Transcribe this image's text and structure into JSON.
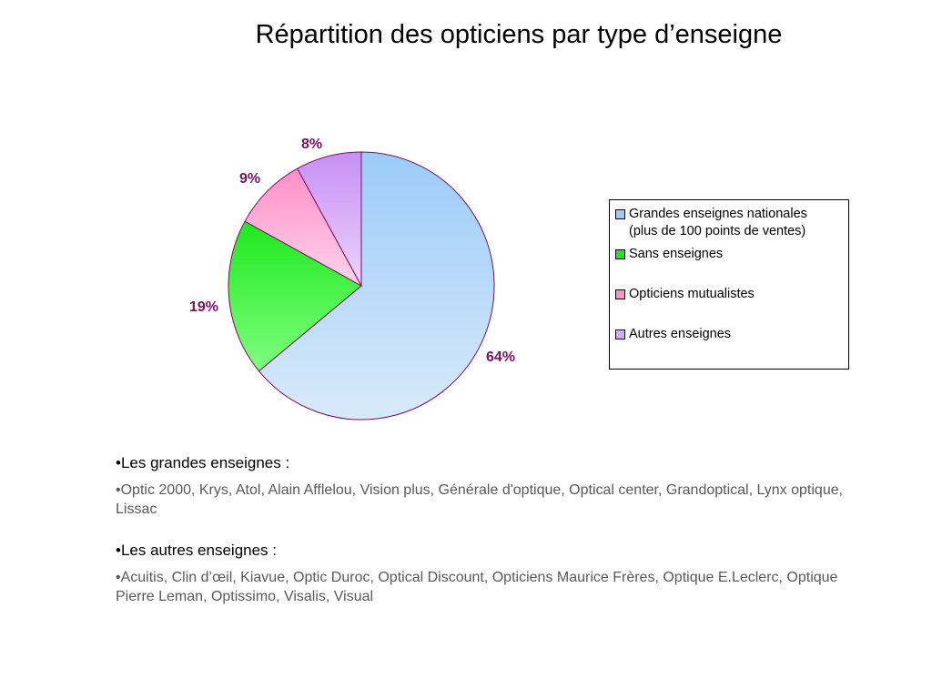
{
  "slide": {
    "title": "Répartition des opticiens par type d’enseigne"
  },
  "chart_data": {
    "type": "pie",
    "title": "",
    "categories": [
      "Grandes enseignes nationales (plus de 100 points de ventes)",
      "Sans enseignes",
      "Opticiens mutualistes",
      "Autres enseignes"
    ],
    "values": [
      64,
      19,
      9,
      8
    ],
    "data_labels": [
      "64%",
      "19%",
      "9%",
      "8%"
    ],
    "legend_placement": "right",
    "colors": {
      "grandes": [
        "#9ccbf9",
        "#d8eaf9"
      ],
      "sans": [
        "#1ee81e",
        "#7fff7f"
      ],
      "mutualistes": [
        "#ff8fc8",
        "#ffd4ea"
      ],
      "autres": [
        "#c78ff5",
        "#ecd4fb"
      ],
      "outline": "#7a0e63",
      "label": "#7a0e63"
    }
  },
  "legend": {
    "items": [
      {
        "line1": "Grandes enseignes nationales",
        "line2": "(plus de 100 points de ventes)",
        "color": "#9ccbf9"
      },
      {
        "line1": "Sans enseignes",
        "line2": "",
        "color": "#1ee81e"
      },
      {
        "line1": "Opticiens mutualistes",
        "line2": "",
        "color": "#ff8fc8"
      },
      {
        "line1": "Autres enseignes",
        "line2": "",
        "color": "#d9a8f7"
      }
    ]
  },
  "text": {
    "grandes_head": "•Les grandes enseignes :",
    "grandes_list": "•Optic 2000, Krys, Atol, Alain Afflelou, Vision plus, Générale d'optique, Optical  center, Grandoptical, Lynx optique, Lissac",
    "autres_head": "•Les autres enseignes :",
    "autres_list": "•Acuitis, Clin d’œil, Kiavue, Optic Duroc, Optical Discount, Opticiens Maurice Frères, Optique E.Leclerc, Optique Pierre Leman, Optissimo, Visalis, Visual"
  }
}
